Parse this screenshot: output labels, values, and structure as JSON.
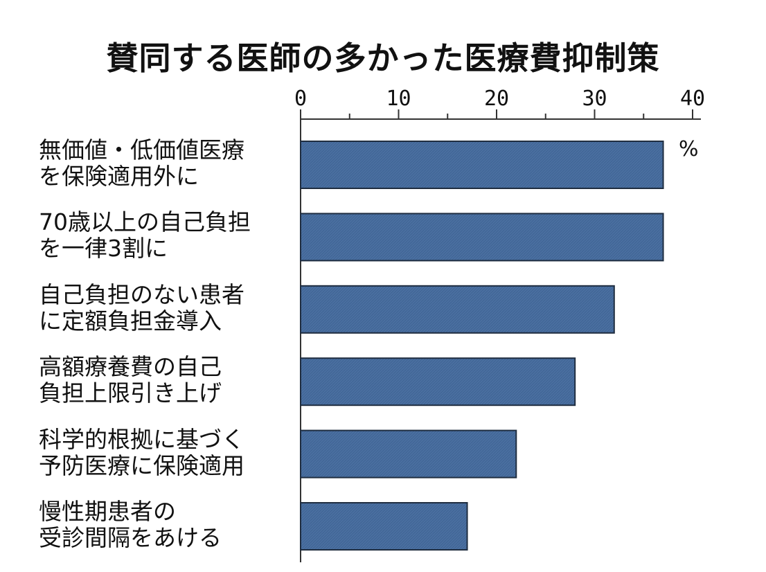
{
  "chart_data": {
    "type": "bar",
    "orientation": "horizontal",
    "title": "賛同する医師の多かった医療費抑制策",
    "unit": "%",
    "categories": [
      [
        "無価値・低価値医療",
        "を保険適用外に"
      ],
      [
        "70歳以上の自己負担",
        "を一律3割に"
      ],
      [
        "自己負担のない患者",
        "に定額負担金導入"
      ],
      [
        "高額療養費の自己",
        "負担上限引き上げ"
      ],
      [
        "科学的根拠に基づく",
        "予防医療に保険適用"
      ],
      [
        "慢性期患者の",
        "受診間隔をあける"
      ]
    ],
    "values": [
      37,
      37,
      32,
      28,
      22,
      17
    ],
    "xlim": [
      0,
      40
    ],
    "xticks": [
      "0",
      "10",
      "20",
      "30",
      "40"
    ],
    "bar_color": "#4a6fa0",
    "grid": false,
    "axis_position": "top"
  }
}
